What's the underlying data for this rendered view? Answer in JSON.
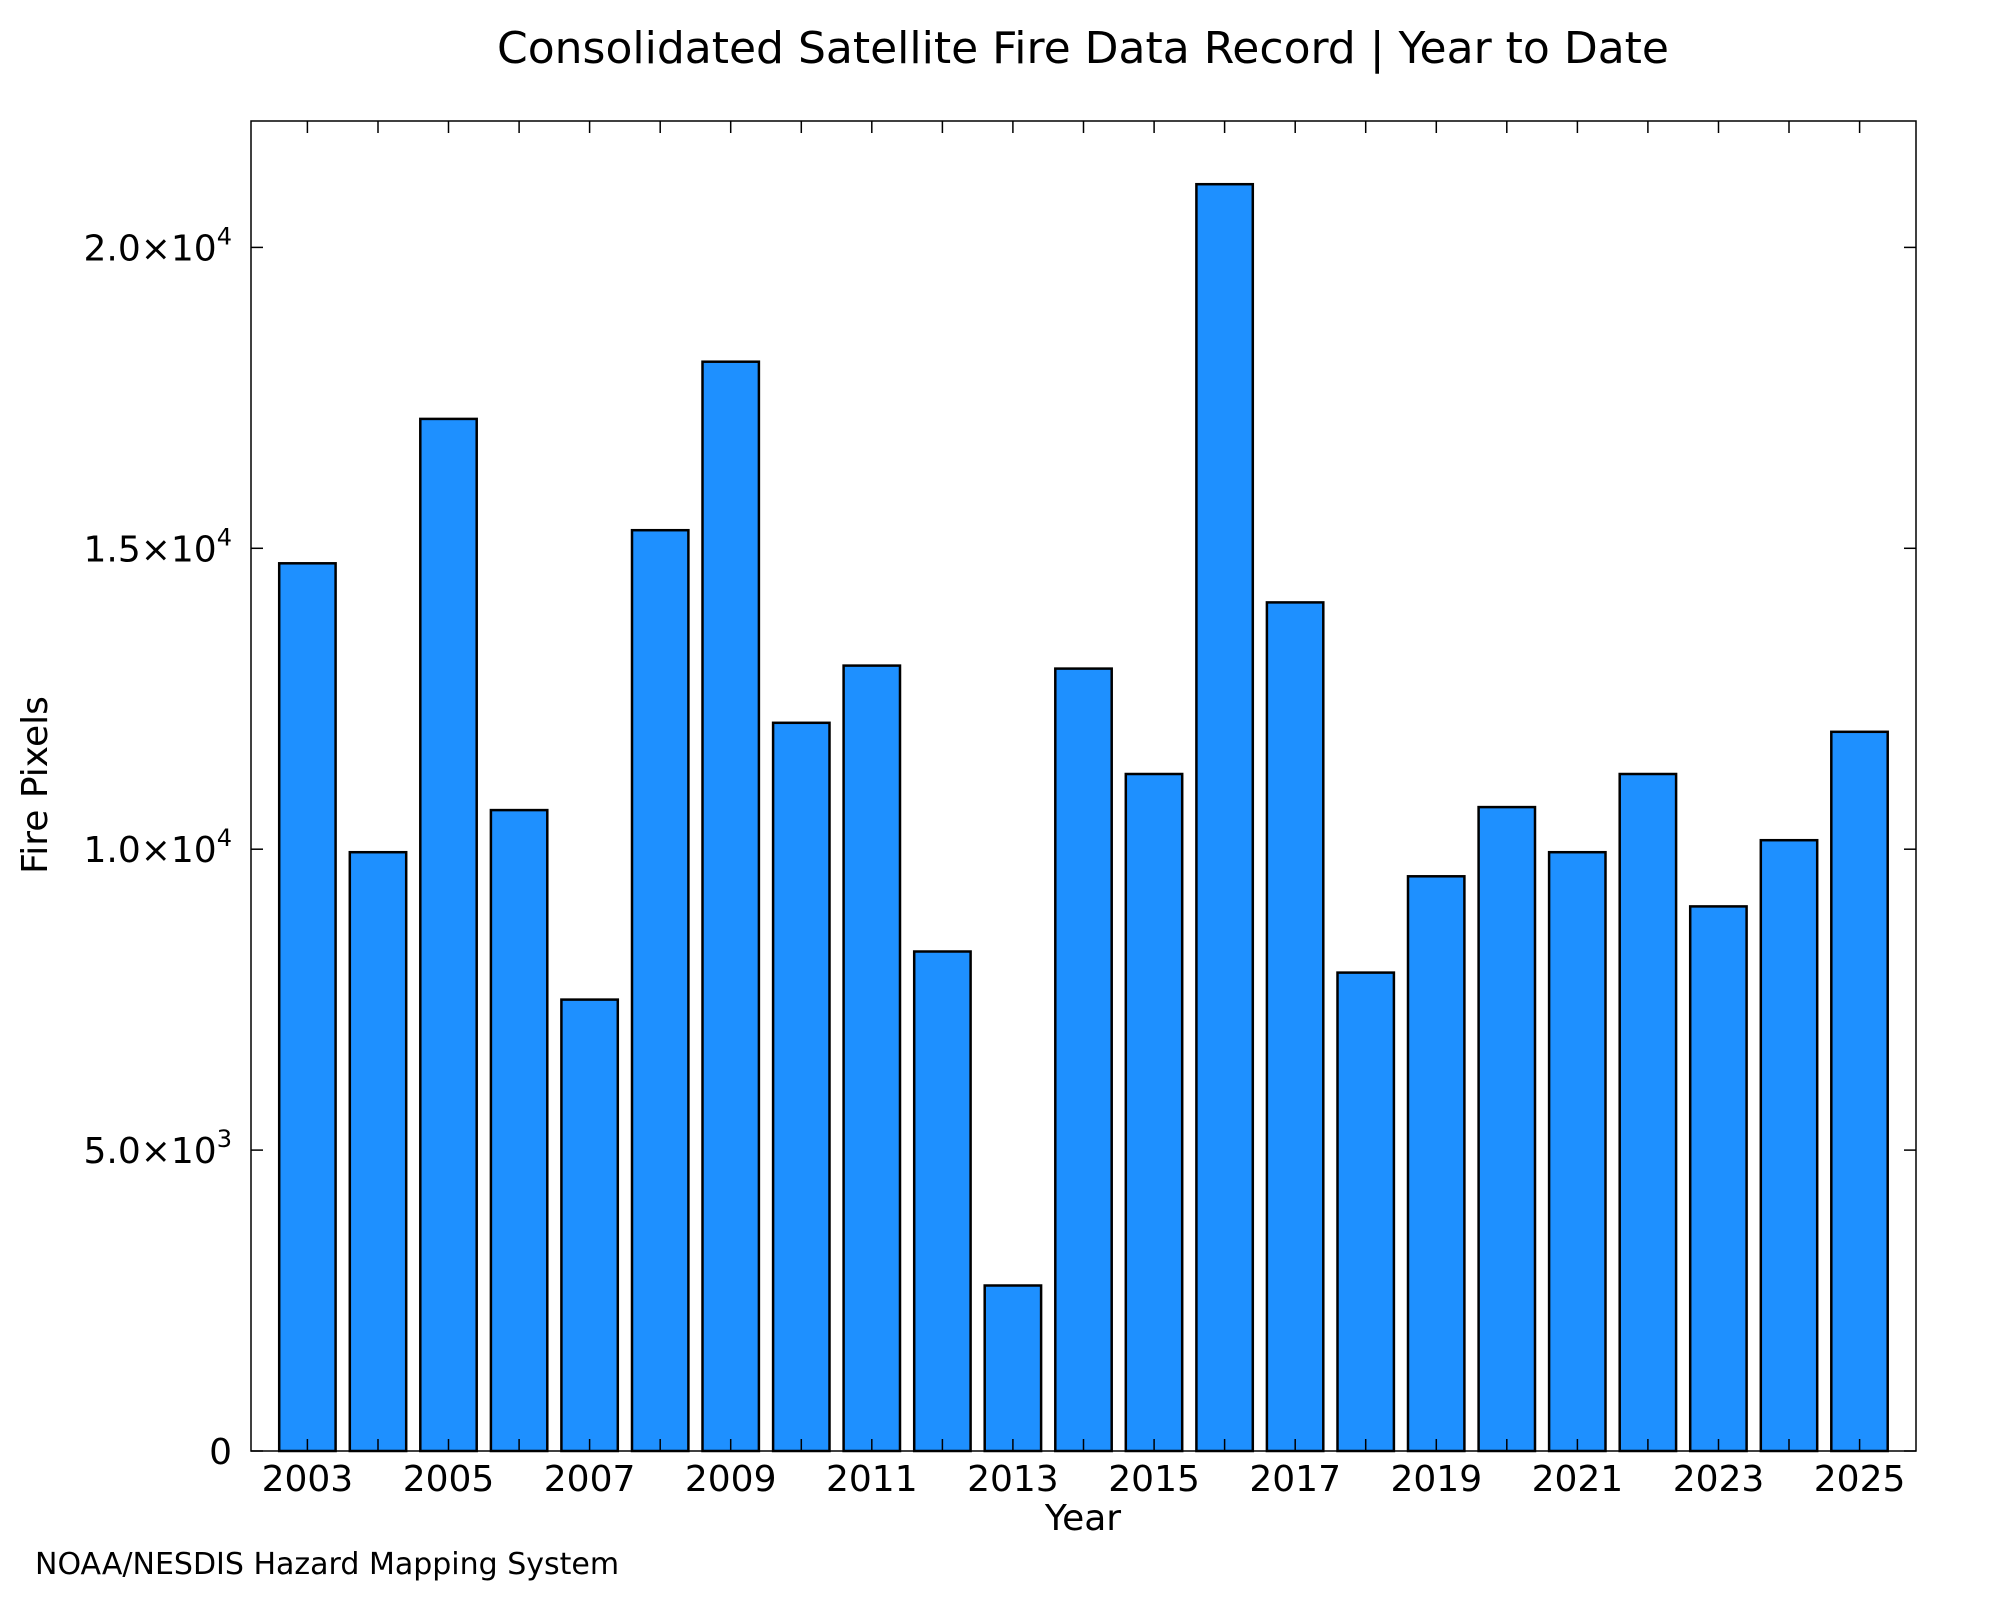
{
  "chart_data": {
    "type": "bar",
    "title": "Consolidated Satellite Fire Data Record | Year to Date",
    "xlabel": "Year",
    "ylabel": "Fire Pixels",
    "categories": [
      "2003",
      "2004",
      "2005",
      "2006",
      "2007",
      "2008",
      "2009",
      "2010",
      "2011",
      "2012",
      "2013",
      "2014",
      "2015",
      "2016",
      "2017",
      "2018",
      "2019",
      "2020",
      "2021",
      "2022",
      "2023",
      "2024",
      "2025"
    ],
    "values": [
      14750,
      9950,
      17150,
      10650,
      7500,
      15300,
      18100,
      12100,
      13050,
      8300,
      2750,
      13000,
      11250,
      21050,
      14100,
      7950,
      9550,
      10700,
      9950,
      11250,
      9050,
      10150,
      11950
    ],
    "x_tick_labels": [
      "2003",
      "2005",
      "2007",
      "2009",
      "2011",
      "2013",
      "2015",
      "2017",
      "2019",
      "2021",
      "2023",
      "2025"
    ],
    "y_ticks": [
      {
        "value": 0,
        "mantissa": "0",
        "exponent": ""
      },
      {
        "value": 5000,
        "mantissa": "5.0×10",
        "exponent": "3"
      },
      {
        "value": 10000,
        "mantissa": "1.0×10",
        "exponent": "4"
      },
      {
        "value": 15000,
        "mantissa": "1.5×10",
        "exponent": "4"
      },
      {
        "value": 20000,
        "mantissa": "2.0×10",
        "exponent": "4"
      }
    ],
    "ylim": [
      0,
      22100
    ],
    "grid": false,
    "bar_color": "#1e90ff",
    "bar_edge_color": "#000000"
  },
  "credit": {
    "text": "NOAA/NESDIS Hazard Mapping System",
    "color": "#808080"
  }
}
